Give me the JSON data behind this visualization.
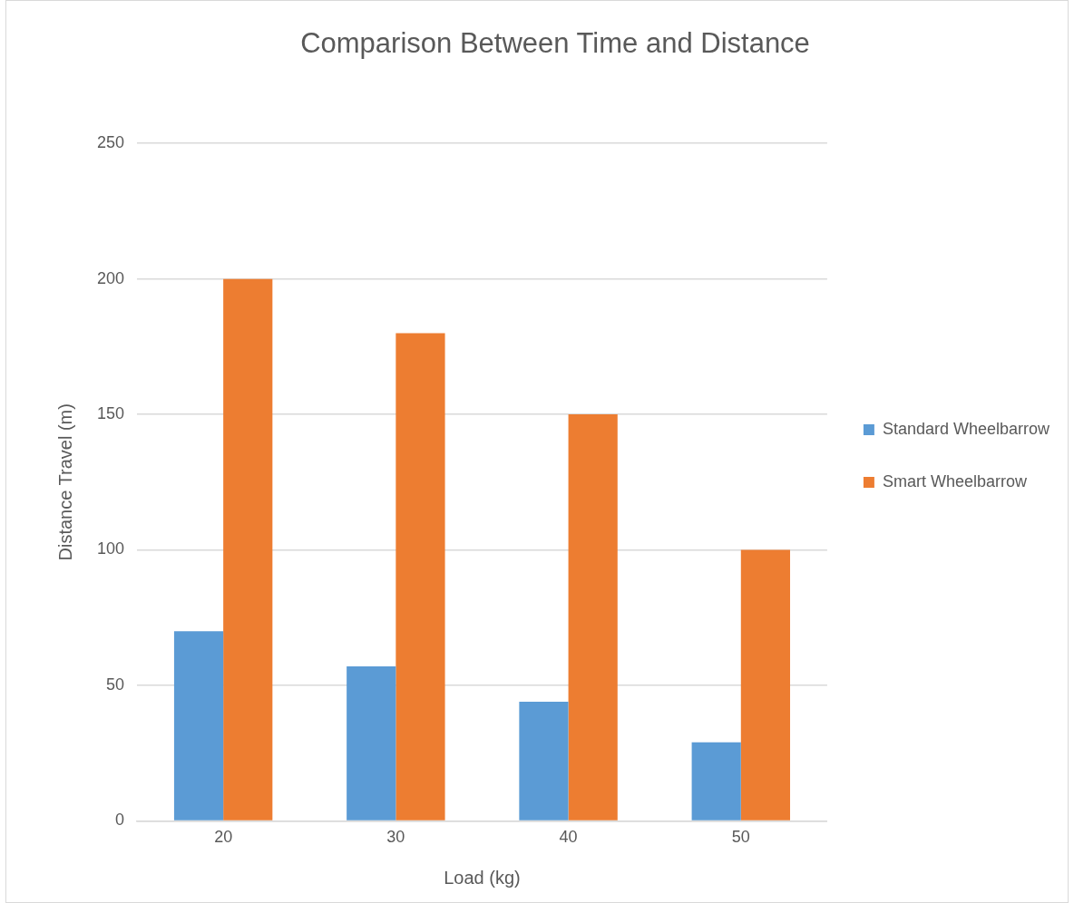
{
  "chart_data": {
    "type": "bar",
    "title": "Comparison Between Time and Distance",
    "xlabel": "Load (kg)",
    "ylabel": "Distance Travel (m)",
    "categories": [
      "20",
      "30",
      "40",
      "50"
    ],
    "series": [
      {
        "name": "Standard Wheelbarrow",
        "color": "#5b9bd5",
        "values": [
          70,
          57,
          44,
          29
        ]
      },
      {
        "name": "Smart Wheelbarrow",
        "color": "#ed7d31",
        "values": [
          200,
          180,
          150,
          100
        ]
      }
    ],
    "ylim": [
      0,
      250
    ],
    "yticks": [
      0,
      50,
      100,
      150,
      200,
      250
    ],
    "grid": "y",
    "legend": "right"
  }
}
